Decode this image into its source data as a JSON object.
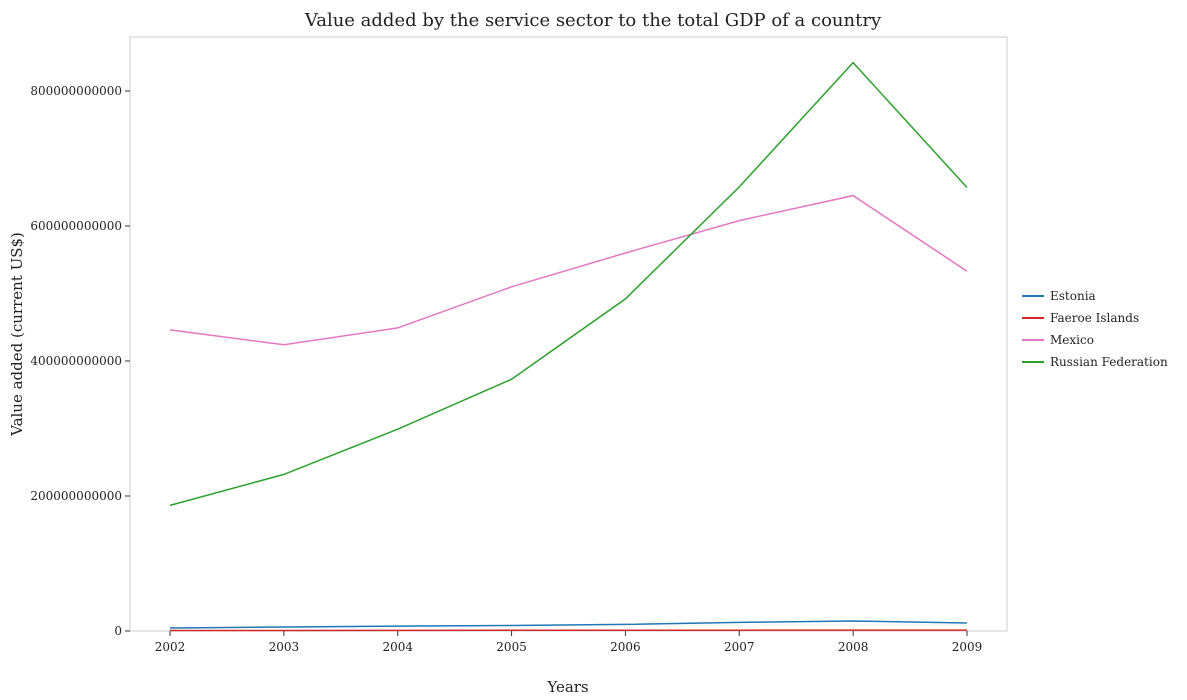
{
  "chart_data": {
    "type": "line",
    "title": "Value added by the service sector to the total GDP of a country",
    "xlabel": "Years",
    "ylabel": "Value added (current US$)",
    "x": [
      "2002",
      "2003",
      "2004",
      "2005",
      "2006",
      "2007",
      "2008",
      "2009"
    ],
    "ylim": [
      0,
      880000000000
    ],
    "yticks": [
      0,
      200000000000,
      400000000000,
      600000000000,
      800000000000
    ],
    "ytick_labels": [
      "0",
      "200000000000",
      "400000000000",
      "600000000000",
      "800000000000"
    ],
    "grid": false,
    "legend_position": "right",
    "series": [
      {
        "name": "Estonia",
        "color": "#1f77b4",
        "values": [
          4500000000,
          6000000000,
          7200000000,
          8200000000,
          9800000000,
          12800000000,
          14800000000,
          11800000000
        ]
      },
      {
        "name": "Faeroe Islands",
        "color": "#d62728",
        "values": [
          700000000,
          800000000,
          900000000,
          1000000000,
          1100000000,
          1250000000,
          1400000000,
          1300000000
        ]
      },
      {
        "name": "Mexico",
        "color": "#e377c2",
        "values": [
          446000000000,
          424000000000,
          449000000000,
          510000000000,
          560000000000,
          608000000000,
          645000000000,
          533000000000
        ]
      },
      {
        "name": "Russian Federation",
        "color": "#2ca02c",
        "values": [
          186000000000,
          232000000000,
          299000000000,
          373000000000,
          492000000000,
          658000000000,
          842000000000,
          657000000000
        ]
      }
    ]
  }
}
